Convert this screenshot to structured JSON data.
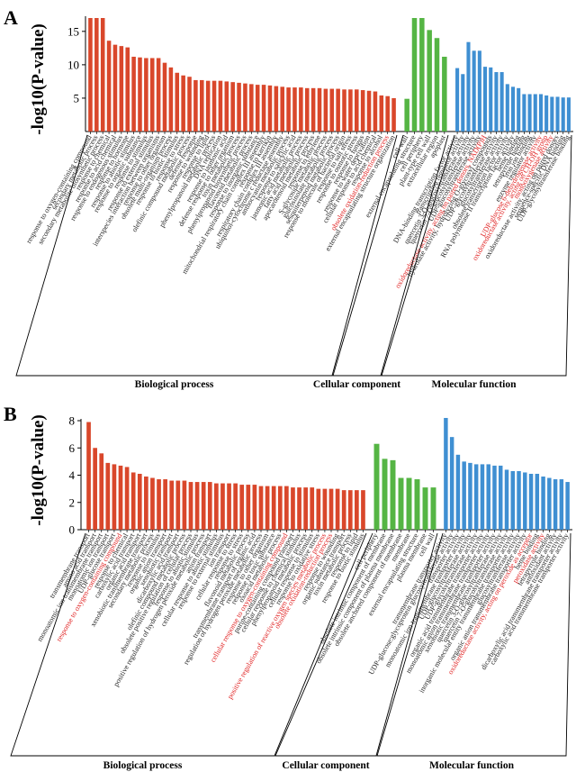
{
  "colors": {
    "biological_process": "#d9472b",
    "cellular_component": "#55b544",
    "molecular_function": "#3f8fd2",
    "highlight": "#e02020",
    "text": "#222222"
  },
  "chart_data": [
    {
      "type": "bar",
      "panel": "A",
      "ylabel": "-log10(P-value)",
      "ylim": [
        0,
        17
      ],
      "yticks": [
        5,
        10,
        15
      ],
      "groups": [
        {
          "name": "Biological process",
          "color": "#d9472b",
          "start": 0,
          "end": 49
        },
        {
          "name": "Cellular component",
          "color": "#55b544",
          "start": 50,
          "end": 55
        },
        {
          "name": "Molecular function",
          "color": "#3f8fd2",
          "start": 56,
          "end": 76
        }
      ],
      "categories": [
        "response to oxygen-containing compound",
        "secondary metabolic process",
        "secondary metabolite biosynthetic process",
        "response to chemical",
        "response to acid chemical",
        "response to endogenous stimulus",
        "response to hormone",
        "response to abiotic stimulus",
        "response to organic substance",
        "response to stimulus",
        "response to external stimulus",
        "interspecies interaction between organisms",
        "response to other organism",
        "obsolete multi-organism process",
        "response to biotic stimulus",
        "response to stress",
        "olefinic compound metabolic process",
        "defense response",
        "response to wounding",
        "response to lipid",
        "phenylpropanoid metabolic process",
        "DNA replication",
        "response to jasmonic acid",
        "defense response to other organism",
        "toxin metabolic process",
        "phenylpropanoid biosynthetic process",
        "flavonoid metabolic process",
        "response to inorganic substance",
        "mitochondrial respiratory chain complex III assembly",
        "response to karrikin",
        "respiratory chain complex III assembly",
        "ubiquinol-cytochrome c reductase assembly",
        "anthocyanin metabolic process",
        "response to salicylic acid",
        "jasmonic acid metabolic process",
        "fatty acid metabolic process",
        "apocarotenoid metabolic process",
        "response to ethylene",
        "S-glycoside metabolic process",
        "glucosinolate metabolic process",
        "sesquiterpenoid metabolic process",
        "response to molecule of bacterial origin",
        "response to salt stress",
        "response to osmotic stress",
        "response to fungus",
        "response to water deprivation",
        "cellular response to acid chemical",
        "response to alcohol",
        "obsolete oxidation-reduction process",
        "external encapsulating structure organization",
        "cell wall",
        "external encapsulating structure",
        "cell periphery",
        "plant-type cell wall",
        "extracellular region",
        "apoplast",
        "DNA-binding transcription factor activity",
        "transcription regulator activity",
        "quercetin 3-O-glucosyltransferase activity",
        "quercetin 7-O-glucosyltransferase activity",
        "UDP-glucosyltransferase activity",
        "oxidoreductase activity, acting on paired donors, NAD(P)H",
        "hydrolase activity, hydrolyzing O-glycosyl compounds",
        "UDP-glycosyltransferase activity",
        "glucosyltransferase activity",
        "obsolete transcription factor activity",
        "RNA polymerase II transcription factor activity",
        "heme binding",
        "tetrapyrrole binding",
        "iron ion binding",
        "enzyme regulator activity",
        "UDP-glucose 6-dehydrogenase activity",
        "oxidoreductase activity, acting on CH-OH group",
        "monooxygenase activity",
        "oxidoreductase activity, acting on paired donors",
        "sequence-specific DNA binding",
        "UDP-glycosyltransferase binding"
      ],
      "values": [
        17,
        17,
        17,
        13.6,
        13,
        12.8,
        12.6,
        11.2,
        11.1,
        11,
        11,
        11,
        10.3,
        9.6,
        8.8,
        8.4,
        8.2,
        7.7,
        7.7,
        7.6,
        7.6,
        7.6,
        7.5,
        7.4,
        7.3,
        7.2,
        7.1,
        7,
        7,
        6.9,
        6.8,
        6.7,
        6.6,
        6.6,
        6.6,
        6.5,
        6.5,
        6.5,
        6.4,
        6.4,
        6.4,
        6.3,
        6.3,
        6.3,
        6.2,
        6.1,
        6,
        5.4,
        5.3,
        5,
        4.9,
        17,
        17,
        15.2,
        14,
        11.2,
        9.5,
        8.6,
        13.4,
        12.1,
        12.1,
        9.7,
        9.6,
        8.9,
        8.9,
        7.1,
        6.7,
        6.5,
        5.6,
        5.6,
        5.6,
        5.6,
        5.4,
        5.2,
        5.2,
        5.1,
        5.1
      ],
      "highlight": [
        48,
        61,
        71,
        72,
        73
      ]
    },
    {
      "type": "bar",
      "panel": "B",
      "ylabel": "-log10(P-value)",
      "ylim": [
        0,
        8
      ],
      "yticks": [
        0,
        2,
        4,
        6,
        8
      ],
      "groups": [
        {
          "name": "Biological process",
          "color": "#d9472b",
          "start": 0,
          "end": 43
        },
        {
          "name": "Cellular component",
          "color": "#55b544",
          "start": 44,
          "end": 51
        },
        {
          "name": "Molecular function",
          "color": "#3f8fd2",
          "start": 52,
          "end": 72
        }
      ],
      "categories": [
        "transmembrane transport",
        "amino acid transport",
        "monoatomic ion transmembrane transport",
        "monoatomic ion transport",
        "UDP-glucose transport",
        "response to oxygen-containing compound",
        "response to chemical",
        "carboxylic acid transport",
        "organic acid transport",
        "xenobiotic transmembrane transport",
        "secondary metabolic process",
        "response to stimulus",
        "organic anion transport",
        "xenobiotic transport",
        "dicarboxylic acid transport",
        "olefinic compound metabolic process",
        "obsolete positive regulation of cellular process",
        "response to abiotic stimulus",
        "positive regulation of hydrogen peroxide metabolic process",
        "anion transport",
        "cellular response to abiotic stimulus",
        "response to external stimulus",
        "ion transport",
        "cellular response to stress",
        "response to stress",
        "flavonoid metabolic process",
        "transmembrane transport of organic acid",
        "regulation of hydrogen peroxide metabolic process",
        "response to other organism",
        "response to toxic substance",
        "oxoacid metabolic process",
        "cellular response to oxygen-containing compound",
        "purine-containing compound transport",
        "cellular response to chemical stimulus",
        "phenylpropanoid metabolic process",
        "cellular response to stimulus",
        "response to oxidative stress",
        "positive regulation of reactive oxygen species metabolic process",
        "obsolete oxidation-reduction process",
        "response to wounding",
        "organic substance transport",
        "toxin metabolic process",
        "response to lipid",
        "response to biotic stimulus",
        "cell periphery",
        "obsolete intrinsic component of membrane",
        "obsolete intrinsic component of plasma membrane",
        "obsolete anchored component of membrane",
        "membrane",
        "external encapsulating structure",
        "plasma membrane",
        "cell wall",
        "transmembrane transporter activity",
        "UDP-glucose:glycoprotein glucosyltransferase activity",
        "transporter activity",
        "monoatomic ion transmembrane transporter activity",
        "UDP-glucosyltransferase activity",
        "UDP-glycosyltransferase activity",
        "organic acid transmembrane transporter activity",
        "monoatomic anion transmembrane transporter activity",
        "xenobiotic transmembrane transporter activity",
        "quercetin 3-O-glucosyltransferase activity",
        "quercetin 7-O-glucosyltransferase activity",
        "inorganic molecular entity transmembrane transporter activity",
        "glucosyltransferase activity",
        "organic anion transmembrane transporter activity",
        "oxidoreductase activity, acting on peroxide as acceptor",
        "heme binding",
        "peroxidase activity",
        "tetrapyrrole binding",
        "antioxidant activity",
        "dicarboxylic acid transmembrane transporter activity",
        "carboxylic acid transmembrane transporter activity"
      ],
      "values": [
        7.9,
        6,
        5.6,
        4.9,
        4.8,
        4.7,
        4.6,
        4.2,
        4.1,
        3.9,
        3.8,
        3.7,
        3.7,
        3.6,
        3.6,
        3.6,
        3.5,
        3.5,
        3.5,
        3.5,
        3.4,
        3.4,
        3.4,
        3.4,
        3.3,
        3.3,
        3.3,
        3.2,
        3.2,
        3.2,
        3.2,
        3.2,
        3.1,
        3.1,
        3.1,
        3.1,
        3,
        3,
        3,
        3,
        2.9,
        2.9,
        2.9,
        2.9,
        6.3,
        5.2,
        5.1,
        3.8,
        3.8,
        3.7,
        3.1,
        3.1,
        8.2,
        6.8,
        5.5,
        5,
        4.9,
        4.8,
        4.8,
        4.8,
        4.7,
        4.7,
        4.4,
        4.3,
        4.3,
        4.2,
        4.1,
        4.1,
        3.9,
        3.8,
        3.7,
        3.7,
        3.5
      ],
      "highlight": [
        5,
        31,
        37,
        38,
        66,
        68
      ]
    }
  ]
}
